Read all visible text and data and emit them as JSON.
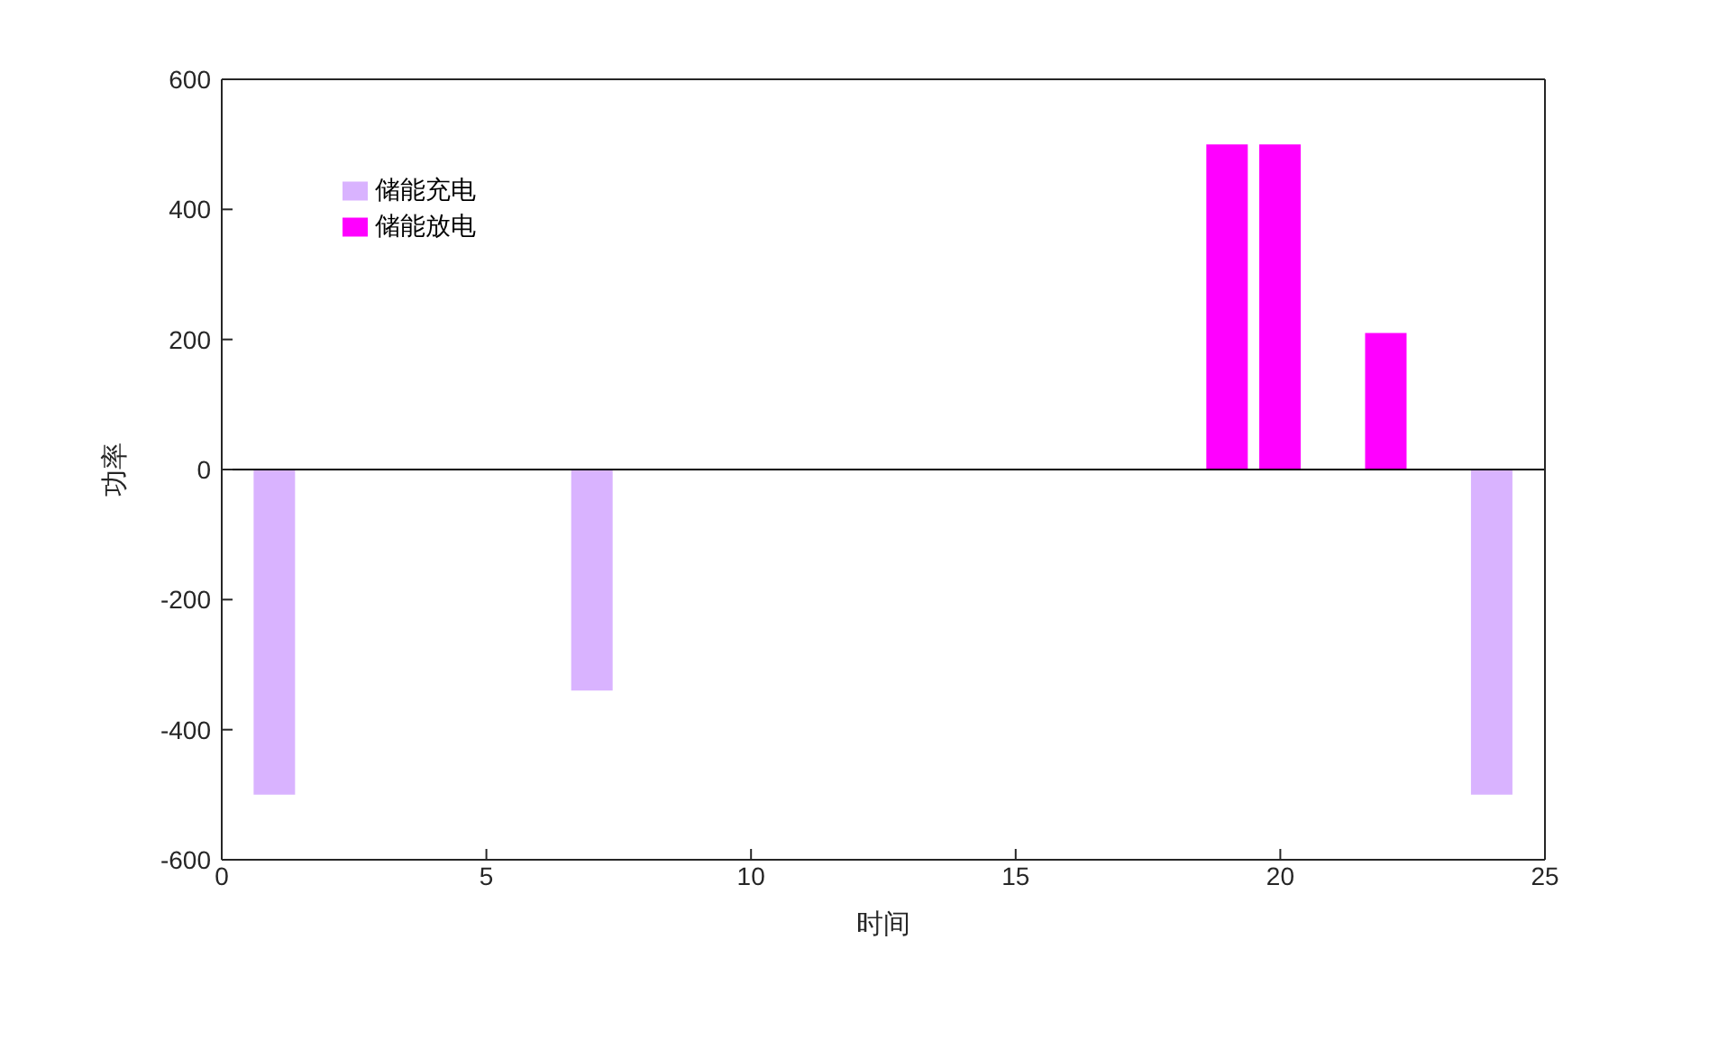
{
  "chart_data": {
    "type": "bar",
    "xlabel": "时间",
    "ylabel": "功率",
    "x": [
      1,
      2,
      3,
      4,
      5,
      6,
      7,
      8,
      9,
      10,
      11,
      12,
      13,
      14,
      15,
      16,
      17,
      18,
      19,
      20,
      21,
      22,
      23,
      24
    ],
    "series": [
      {
        "name": "储能充电",
        "color": "#d9b3ff",
        "values": [
          -500,
          0,
          0,
          0,
          0,
          0,
          -340,
          0,
          0,
          0,
          0,
          0,
          0,
          0,
          0,
          0,
          0,
          0,
          0,
          0,
          0,
          0,
          0,
          -500
        ]
      },
      {
        "name": "储能放电",
        "color": "#ff00ff",
        "values": [
          0,
          0,
          0,
          0,
          0,
          0,
          0,
          0,
          0,
          0,
          0,
          0,
          0,
          0,
          0,
          0,
          0,
          0,
          500,
          500,
          0,
          210,
          0,
          0
        ]
      }
    ],
    "stacked": true,
    "xlim": [
      0,
      25
    ],
    "xticks": [
      0,
      5,
      10,
      15,
      20,
      25
    ],
    "ylim": [
      -600,
      600
    ],
    "yticks": [
      -600,
      -400,
      -200,
      0,
      200,
      400,
      600
    ],
    "ref_lines": [
      {
        "axis": "y",
        "value": 0,
        "color": "#000000"
      }
    ],
    "grid": false,
    "legend": "top left"
  }
}
